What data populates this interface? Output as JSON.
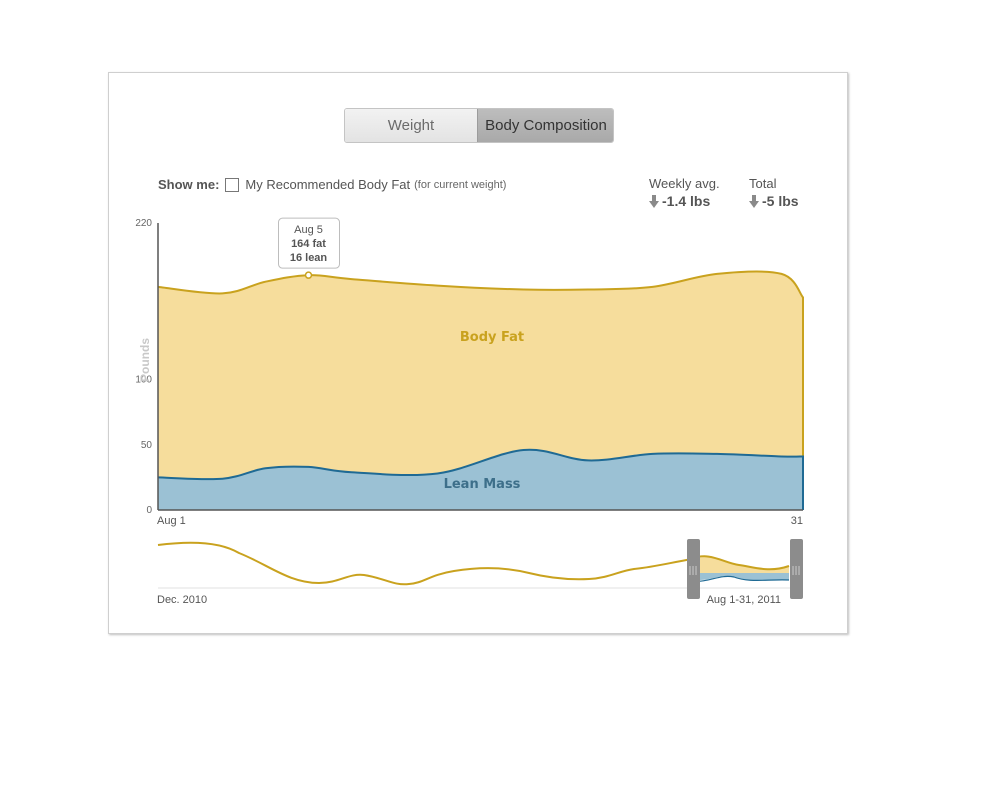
{
  "tabs": {
    "weight": "Weight",
    "body_composition": "Body Composition",
    "active": "body_composition"
  },
  "show_me": {
    "label": "Show me:",
    "option": "My Recommended Body Fat",
    "option_note": "(for current weight)",
    "checked": false
  },
  "stats": {
    "weekly": {
      "title": "Weekly avg.",
      "value": "-1.4 lbs"
    },
    "total": {
      "title": "Total",
      "value": "-5 lbs"
    }
  },
  "tooltip": {
    "date": "Aug 5",
    "fat": "164 fat",
    "lean": "16 lean"
  },
  "navigator": {
    "start_label": "Dec. 2010",
    "range_label": "Aug 1-31, 2011"
  },
  "chart_data": {
    "type": "area",
    "title": "",
    "xlabel": "",
    "ylabel": "Pounds",
    "x_start_label": "Aug 1",
    "x_end_label": "31",
    "x": [
      1,
      4,
      6,
      8,
      10,
      14,
      18,
      21,
      24,
      27,
      30,
      31
    ],
    "yticks": [
      0,
      50,
      100,
      220
    ],
    "ylim": [
      0,
      220
    ],
    "colors": {
      "fat": "#c9a21e",
      "fat_fill": "#f6dd9c",
      "lean": "#1f6a94",
      "lean_fill": "#9bc1d4"
    },
    "series": [
      {
        "name": "Lean Mass",
        "values": [
          25,
          24,
          32,
          33,
          29,
          28,
          46,
          38,
          43,
          43,
          41,
          41
        ]
      },
      {
        "name": "Body Fat",
        "values": [
          171,
          166,
          175,
          180,
          177,
          172,
          169,
          169,
          171,
          181,
          181,
          163
        ]
      }
    ],
    "annotation": {
      "x": 8,
      "text": [
        "Aug 5",
        "164 fat",
        "16 lean"
      ]
    }
  }
}
